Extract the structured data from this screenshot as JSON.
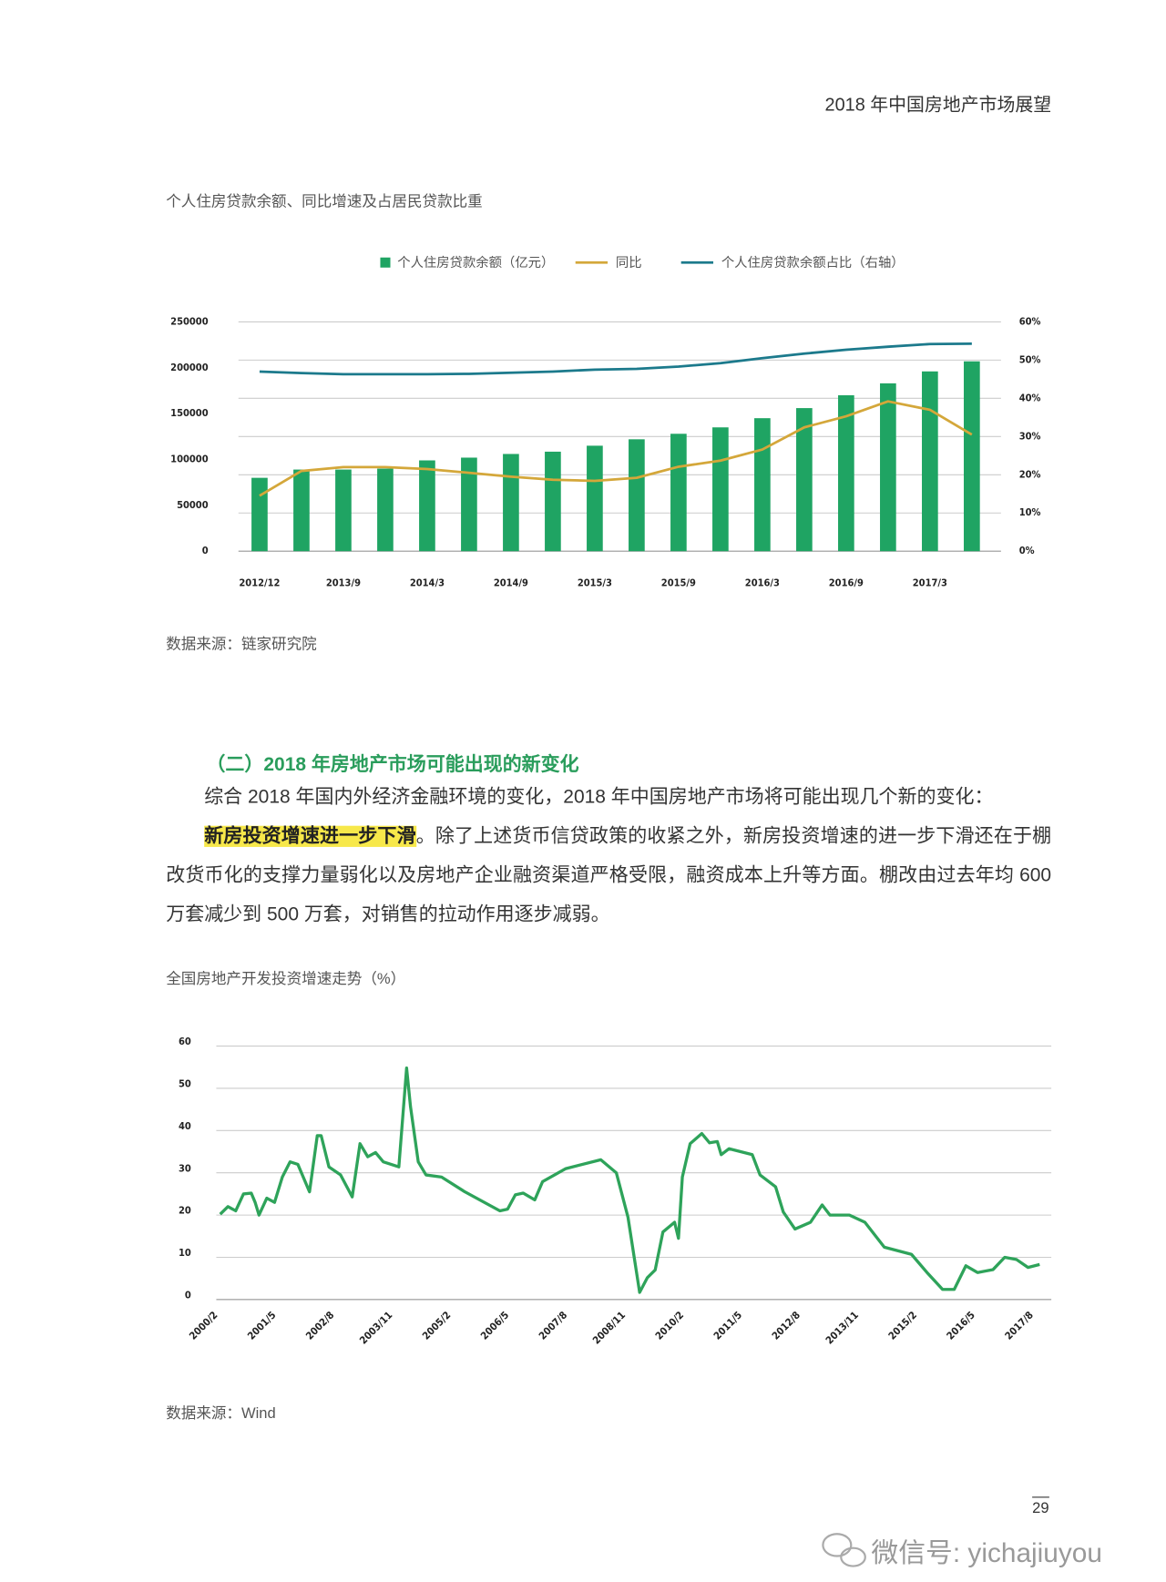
{
  "header": {
    "title": "2018 年中国房地产市场展望"
  },
  "chart_data": [
    {
      "type": "bar-line",
      "title": "个人住房贷款余额、同比增速及占居民贷款比重",
      "categories": [
        "2012/12",
        null,
        "2013/9",
        null,
        "2014/3",
        null,
        "2014/9",
        null,
        "2015/3",
        null,
        "2015/9",
        null,
        "2016/3",
        null,
        "2016/9",
        null,
        "2017/3",
        null
      ],
      "series": [
        {
          "name": "个人住房贷款余额（亿元）",
          "type": "bar",
          "color": "#1fa463",
          "values": [
            80000,
            89000,
            89000,
            90000,
            99000,
            102000,
            106000,
            108500,
            115000,
            122000,
            128000,
            135000,
            145000,
            156000,
            170000,
            183000,
            196000,
            207000
          ]
        },
        {
          "name": "同比",
          "type": "line",
          "axis": "y2",
          "color": "#d4a73a",
          "values": [
            14.5,
            21,
            22,
            22,
            21.5,
            20.5,
            19.5,
            18.7,
            18.4,
            19.2,
            22.1,
            23.7,
            26.6,
            32.4,
            35.3,
            39.2,
            37,
            30.5
          ]
        },
        {
          "name": "个人住房贷款余额占比（右轴）",
          "type": "line",
          "axis": "y2",
          "color": "#1c7a8c",
          "values": [
            47,
            46.6,
            46.3,
            46.3,
            46.3,
            46.4,
            46.7,
            47,
            47.5,
            47.7,
            48.3,
            49.2,
            50.5,
            51.7,
            52.7,
            53.5,
            54.2,
            54.3
          ]
        }
      ],
      "ylim": [
        0,
        250000
      ],
      "yticks": [
        0,
        50000,
        100000,
        150000,
        200000,
        250000
      ],
      "y2lim": [
        0,
        60
      ],
      "y2ticks": [
        {
          "value": 0,
          "label": "0%"
        },
        {
          "value": 10,
          "label": "10%"
        },
        {
          "value": 20,
          "label": "20%"
        },
        {
          "value": 30,
          "label": "30%"
        },
        {
          "value": 40,
          "label": "40%"
        },
        {
          "value": 50,
          "label": "50%"
        },
        {
          "value": 60,
          "label": "60%"
        }
      ],
      "grid": true,
      "legend": "top",
      "source": "数据来源：链家研究院"
    },
    {
      "type": "line",
      "title": "全国房地产开发投资增速走势（%）",
      "color": "#2ea35a",
      "x": [
        "2000/2",
        "2000/4",
        "2000/6",
        "2000/8",
        "2000/10",
        "2000/11",
        "2000/12",
        "2001/2",
        "2001/4",
        "2001/6",
        "2001/8",
        "2001/10",
        "2002/1",
        "2002/3",
        "2002/4",
        "2002/6",
        "2002/9",
        "2002/12",
        "2003/2",
        "2003/4",
        "2003/6",
        "2003/8",
        "2003/12",
        "2004/2",
        "2004/3",
        "2004/5",
        "2004/7",
        "2004/11",
        "2005/5",
        "2006/2",
        "2006/4",
        "2006/6",
        "2006/8",
        "2006/11",
        "2007/1",
        "2007/7",
        "2008/4",
        "2008/8",
        "2008/11",
        "2009/2",
        "2009/4",
        "2009/6",
        "2009/8",
        "2009/11",
        "2009/12",
        "2010/1",
        "2010/3",
        "2010/6",
        "2010/8",
        "2010/10",
        "2010/11",
        "2011/1",
        "2011/7",
        "2011/9",
        "2012/1",
        "2012/3",
        "2012/6",
        "2012/10",
        "2013/1",
        "2013/3",
        "2013/8",
        "2013/12",
        "2014/5",
        "2014/12",
        "2015/4",
        "2015/8",
        "2015/11",
        "2016/2",
        "2016/5",
        "2016/9",
        "2016/12",
        "2017/3",
        "2017/6",
        "2017/9"
      ],
      "values": [
        20.2,
        22,
        21,
        25,
        25.2,
        23,
        20,
        24,
        23,
        29,
        32.6,
        32,
        25.5,
        38.8,
        38.8,
        31.4,
        29.5,
        24.3,
        36.9,
        33.8,
        34.8,
        32.6,
        31.4,
        54.8,
        45.7,
        32.6,
        29.5,
        29,
        25.5,
        21,
        21.4,
        24.8,
        25.2,
        23.6,
        27.9,
        31,
        33.1,
        30,
        19.5,
        1.7,
        5.2,
        7,
        16,
        18.3,
        14.5,
        29,
        36.9,
        39.3,
        37.1,
        37.4,
        34.3,
        35.7,
        34.3,
        29.5,
        26.7,
        20.7,
        16.7,
        18.3,
        22.4,
        20,
        20,
        18.3,
        12.4,
        10.7,
        6.4,
        2.4,
        2.4,
        8,
        6.4,
        7.1,
        10,
        9.5,
        7.6,
        8.3
      ],
      "xlim": [
        "2000/1",
        "2017/12"
      ],
      "xticks": [
        "2000/2",
        "2001/5",
        "2002/8",
        "2003/11",
        "2005/2",
        "2006/5",
        "2007/8",
        "2008/11",
        "2010/2",
        "2011/5",
        "2012/8",
        "2013/11",
        "2015/2",
        "2016/5",
        "2017/8"
      ],
      "ylim": [
        0,
        60
      ],
      "yticks": [
        0,
        10,
        20,
        30,
        40,
        50,
        60
      ],
      "grid": true,
      "source": "数据来源：Wind"
    }
  ],
  "section": {
    "heading": "（二）2018 年房地产市场可能出现的新变化",
    "paragraphs": [
      {
        "text": "综合 2018 年国内外经济金融环境的变化，2018 年中国房地产市场将可能出现几个新的变化："
      },
      {
        "highlight": "新房投资增速进一步下滑",
        "text": "。除了上述货币信贷政策的收紧之外，新房投资增速的进一步下滑还在于棚改货币化的支撑力量弱化以及房地产企业融资渠道严格受限，融资成本上升等方面。棚改由过去年均 600 万套减少到 500 万套，对销售的拉动作用逐步减弱。"
      }
    ]
  },
  "footer": {
    "page_number": "29",
    "watermark": "微信号: yichajiuyou"
  }
}
